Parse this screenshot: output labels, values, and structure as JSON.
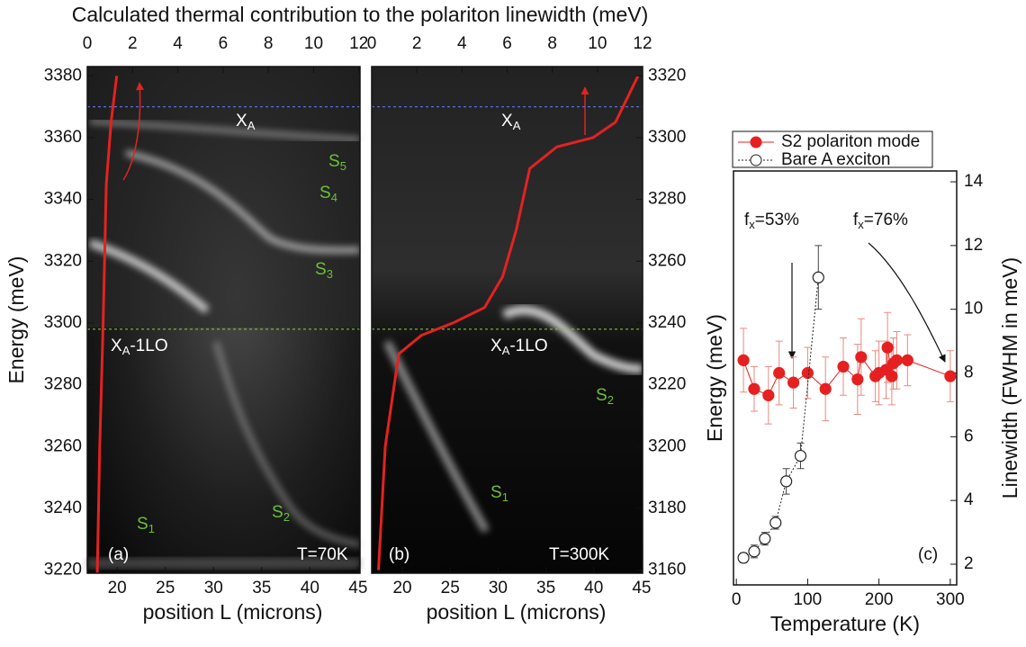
{
  "chart_data": [
    {
      "type": "image",
      "x2label": "Calculated thermal contribution to the polariton linewidth (meV)",
      "xlabel": "position L (microns)",
      "ylabel": "Energy (meV)",
      "xlim": [
        16.9,
        45.2
      ],
      "xticks": [
        20,
        25,
        30,
        35,
        40,
        45
      ],
      "x2lim": [
        0,
        12.05
      ],
      "x2ticks": [
        0,
        2,
        4,
        6,
        8,
        10,
        12
      ],
      "ylim": [
        3219,
        3383
      ],
      "yticks": [
        3220,
        3240,
        3260,
        3280,
        3300,
        3320,
        3340,
        3360,
        3380
      ],
      "curve": {
        "color": "#e32222",
        "axis": "x2",
        "x": [
          0.44,
          0.55,
          0.7,
          0.84,
          1.05,
          1.3
        ],
        "y": [
          3219,
          3260,
          3300,
          3345,
          3365,
          3380
        ]
      },
      "ref_lines": [
        {
          "y": 3370,
          "color": "#5a6fd8"
        },
        {
          "y": 3298,
          "color": "#7fbf3f"
        }
      ],
      "annotations": [
        {
          "text": "X",
          "sub": "A",
          "color": "#ffffff"
        },
        {
          "text": "S",
          "sub": "5",
          "color": "#6bbf3a"
        },
        {
          "text": "S",
          "sub": "4",
          "color": "#6bbf3a"
        },
        {
          "text": "S",
          "sub": "3",
          "color": "#6bbf3a"
        },
        {
          "text": "X",
          "sub": "A",
          "after": "-1LO",
          "color": "#ffffff"
        },
        {
          "text": "S",
          "sub": "1",
          "color": "#6bbf3a"
        },
        {
          "text": "S",
          "sub": "2",
          "color": "#6bbf3a"
        },
        {
          "text": "(a)",
          "color": "#ffffff"
        },
        {
          "text": "T=70K",
          "color": "#ffffff"
        }
      ]
    },
    {
      "type": "image",
      "xlabel": "position L (microns)",
      "xlim": [
        16.8,
        45.1
      ],
      "xticks": [
        20,
        25,
        30,
        35,
        40,
        45
      ],
      "x2lim": [
        0,
        12
      ],
      "x2ticks": [
        0,
        2,
        4,
        6,
        8,
        10,
        12
      ],
      "ylim": [
        3159,
        3323
      ],
      "yticks": [
        3160,
        3180,
        3200,
        3220,
        3240,
        3260,
        3280,
        3300,
        3320
      ],
      "curve": {
        "color": "#e32222",
        "axis": "x2",
        "x": [
          0.3,
          0.6,
          1.2,
          2.2,
          3.6,
          5,
          5.8,
          6.4,
          7,
          8.2,
          9.8,
          10.8,
          11.8
        ],
        "y": [
          3160,
          3200,
          3230,
          3236,
          3240,
          3245,
          3255,
          3270,
          3290,
          3297,
          3300,
          3305,
          3320
        ]
      },
      "ref_lines": [
        {
          "y": 3310,
          "color": "#5a6fd8"
        },
        {
          "y": 3238,
          "color": "#7fbf3f"
        }
      ],
      "annotations": [
        {
          "text": "X",
          "sub": "A",
          "color": "#ffffff"
        },
        {
          "text": "X",
          "sub": "A",
          "after": "-1LO",
          "color": "#ffffff"
        },
        {
          "text": "S",
          "sub": "2",
          "color": "#6bbf3a"
        },
        {
          "text": "S",
          "sub": "1",
          "color": "#6bbf3a"
        },
        {
          "text": "(b)",
          "color": "#ffffff"
        },
        {
          "text": "T=300K",
          "color": "#ffffff"
        }
      ]
    },
    {
      "type": "scatter",
      "xlabel": "Temperature (K)",
      "ylabel": "Energy (meV)",
      "y2label": "Linewidth (FWHM in meV)",
      "xlim": [
        -4,
        309
      ],
      "xticks": [
        0,
        100,
        200,
        300
      ],
      "y2lim": [
        1.35,
        14.34
      ],
      "y2ticks": [
        2,
        4,
        6,
        8,
        10,
        12,
        14
      ],
      "series": [
        {
          "name": "S2 polariton mode",
          "color": "#e62020",
          "marker": "filled",
          "axis": "y2",
          "x": [
            10,
            25,
            45,
            60,
            80,
            100,
            125,
            150,
            170,
            175,
            195,
            200,
            210,
            212,
            218,
            220,
            225,
            240,
            300
          ],
          "values": [
            8.4,
            7.5,
            7.3,
            8.0,
            7.7,
            8.0,
            7.5,
            8.2,
            7.8,
            8.5,
            7.9,
            8.0,
            8.1,
            8.8,
            7.9,
            8.3,
            8.4,
            8.4,
            7.9
          ],
          "errors": [
            1,
            0.7,
            0.9,
            1.0,
            0.8,
            0.8,
            1.0,
            0.9,
            1.1,
            1.2,
            0.8,
            1.0,
            0.9,
            1.1,
            0.9,
            0.8,
            0.9,
            0.8,
            0.8
          ]
        },
        {
          "name": "Bare A exciton",
          "color": "#222222",
          "marker": "open",
          "axis": "y2",
          "x": [
            10,
            25,
            40,
            55,
            70,
            90,
            115
          ],
          "values": [
            2.2,
            2.4,
            2.8,
            3.3,
            4.6,
            5.4,
            11.0
          ],
          "errors": [
            0.15,
            0.2,
            0.2,
            0.2,
            0.4,
            0.4,
            1.0
          ]
        }
      ],
      "annotations": [
        {
          "text": "f",
          "sub": "x",
          "after": "=53%",
          "color": "#111111"
        },
        {
          "text": "f",
          "sub": "x",
          "after": "=76%",
          "color": "#111111"
        },
        {
          "text": "(c)",
          "color": "#111111"
        }
      ]
    }
  ]
}
